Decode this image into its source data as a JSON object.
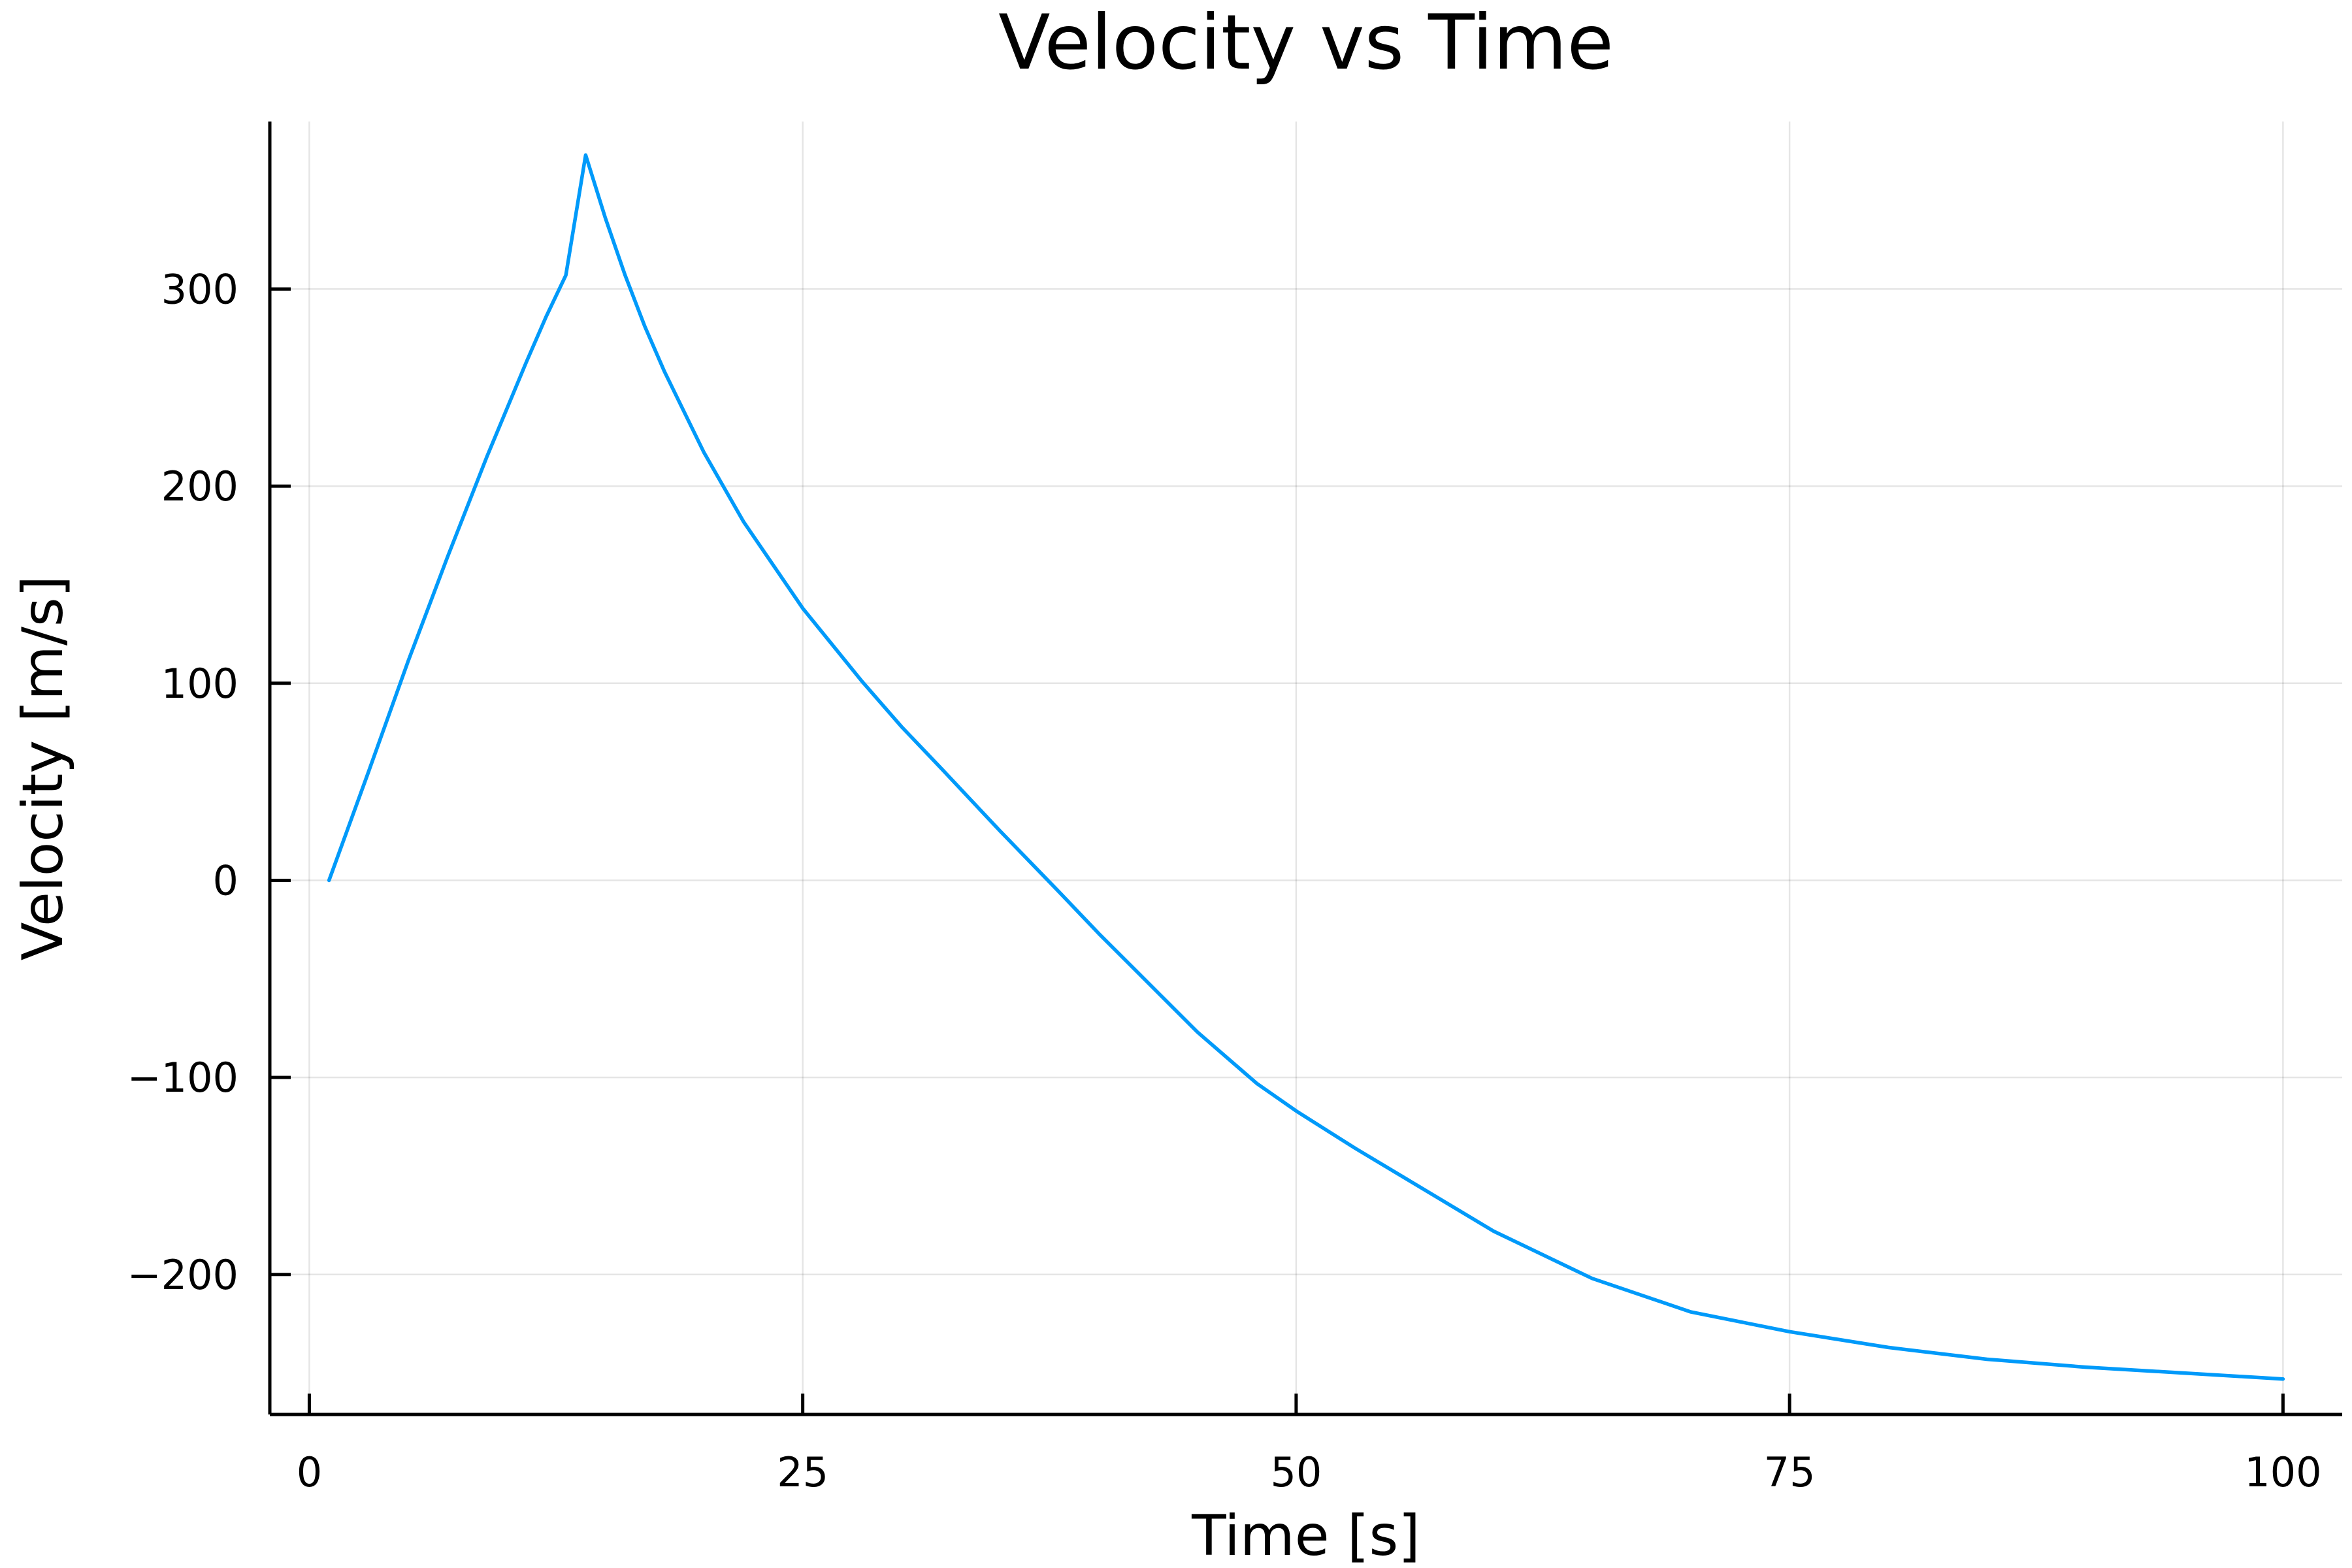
{
  "chart_data": {
    "type": "line",
    "title": "Velocity vs Time",
    "xlabel": "Time [s]",
    "ylabel": "Velocity [m/s]",
    "xlim": [
      -2,
      103
    ],
    "ylim": [
      -271,
      385
    ],
    "xticks": [
      0,
      25,
      50,
      75,
      100
    ],
    "xtick_labels": [
      "0",
      "25",
      "50",
      "75",
      "100"
    ],
    "yticks": [
      -200,
      -100,
      0,
      100,
      200,
      300
    ],
    "ytick_labels": [
      "−200",
      "−100",
      "0",
      "100",
      "200",
      "300"
    ],
    "grid": true,
    "legend": "none",
    "series": [
      {
        "color": "#009AFA",
        "x": [
          1,
          3,
          5,
          7,
          9,
          11,
          12,
          13,
          14,
          15,
          16,
          17,
          18,
          20,
          22,
          25,
          28,
          30,
          32,
          35,
          38,
          40,
          42,
          45,
          48,
          50,
          53,
          56,
          60,
          65,
          70,
          75,
          80,
          85,
          90,
          95,
          100
        ],
        "y": [
          0,
          55,
          111,
          164,
          215,
          263,
          286,
          307,
          368,
          336,
          307,
          281,
          258,
          217,
          182,
          138,
          101,
          78,
          57,
          25,
          -6,
          -27,
          -47,
          -77,
          -103,
          -117,
          -136,
          -154,
          -178,
          -202,
          -219,
          -229,
          -237,
          -243,
          -247,
          -250,
          -253
        ]
      }
    ]
  }
}
